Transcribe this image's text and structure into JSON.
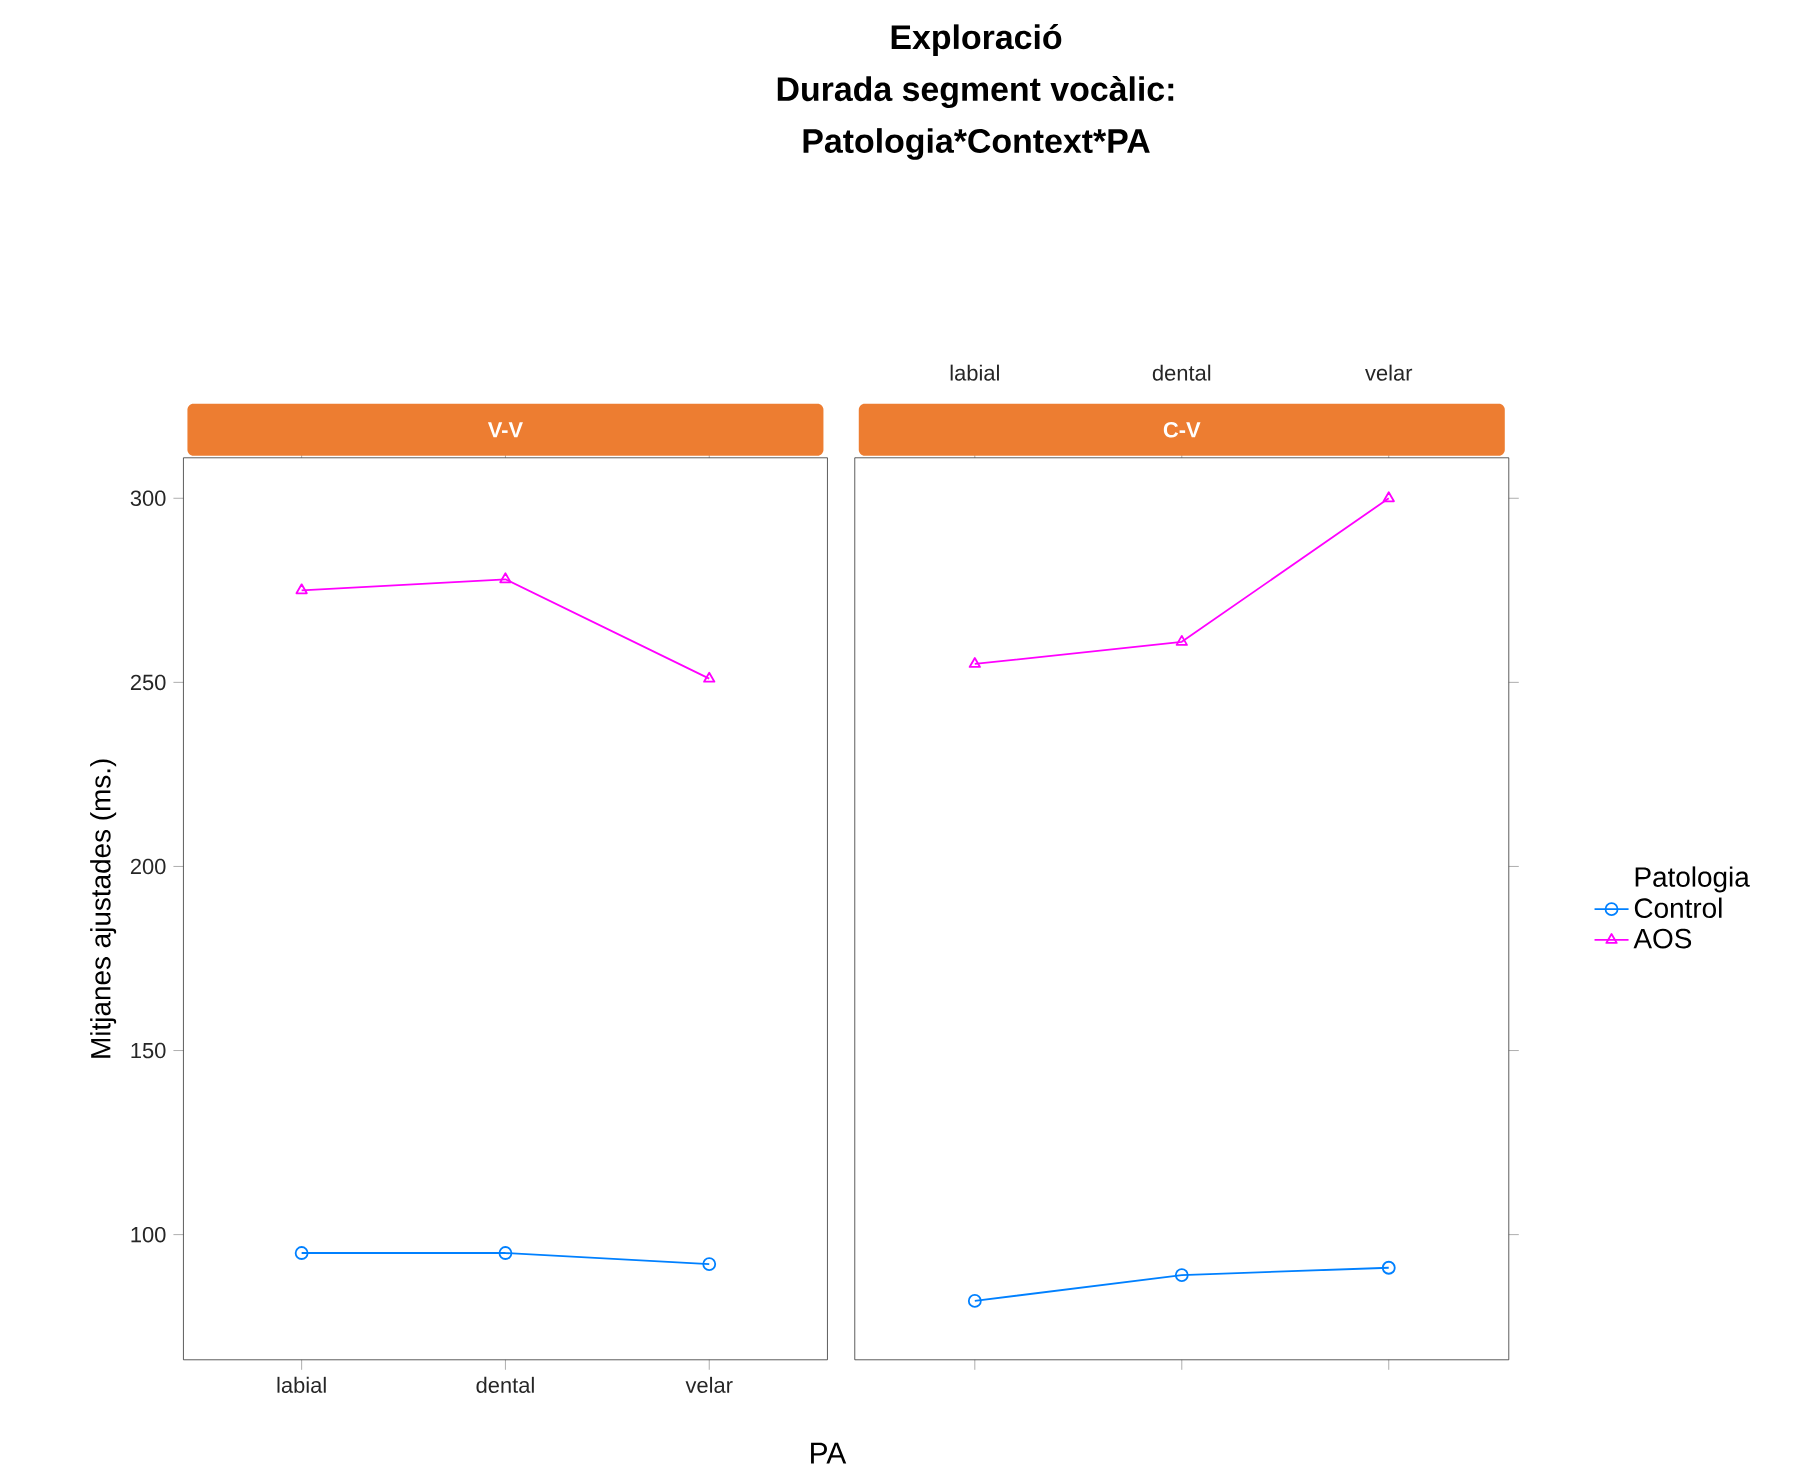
{
  "chart_data": [
    {
      "type": "line",
      "title": "V-V",
      "annotations": [
        "Exploració",
        "Durada segment vocàlic:",
        "Patologia*Context*PA"
      ],
      "xlabel": "PA",
      "ylabel": "Mitjanes ajustades (ms.)",
      "categories": [
        "labial",
        "dental",
        "velar"
      ],
      "ylim": [
        66,
        311
      ],
      "yticks": [
        100,
        150,
        200,
        250,
        300
      ],
      "line_style": "solid",
      "series": [
        {
          "color": "#0080ff",
          "marker": "circle",
          "values": [
            95,
            95,
            92
          ]
        },
        {
          "color": "#ff00ff",
          "marker": "triangle",
          "values": [
            275,
            278,
            251
          ]
        }
      ]
    },
    {
      "type": "line",
      "title": "C-V",
      "categories": [
        "labial",
        "dental",
        "velar"
      ],
      "ylim": [
        66,
        311
      ],
      "yticks": [
        100,
        150,
        200,
        250,
        300
      ],
      "tick_labels": "x",
      "line_style": "solid",
      "legend": "right",
      "legend_title": "Patologia",
      "series": [
        {
          "name": "Control",
          "color": "#0080ff",
          "marker": "circle",
          "values": [
            82,
            89,
            91
          ]
        },
        {
          "name": "AOS",
          "color": "#ff00ff",
          "marker": "triangle",
          "values": [
            255,
            261,
            300
          ]
        }
      ]
    }
  ]
}
